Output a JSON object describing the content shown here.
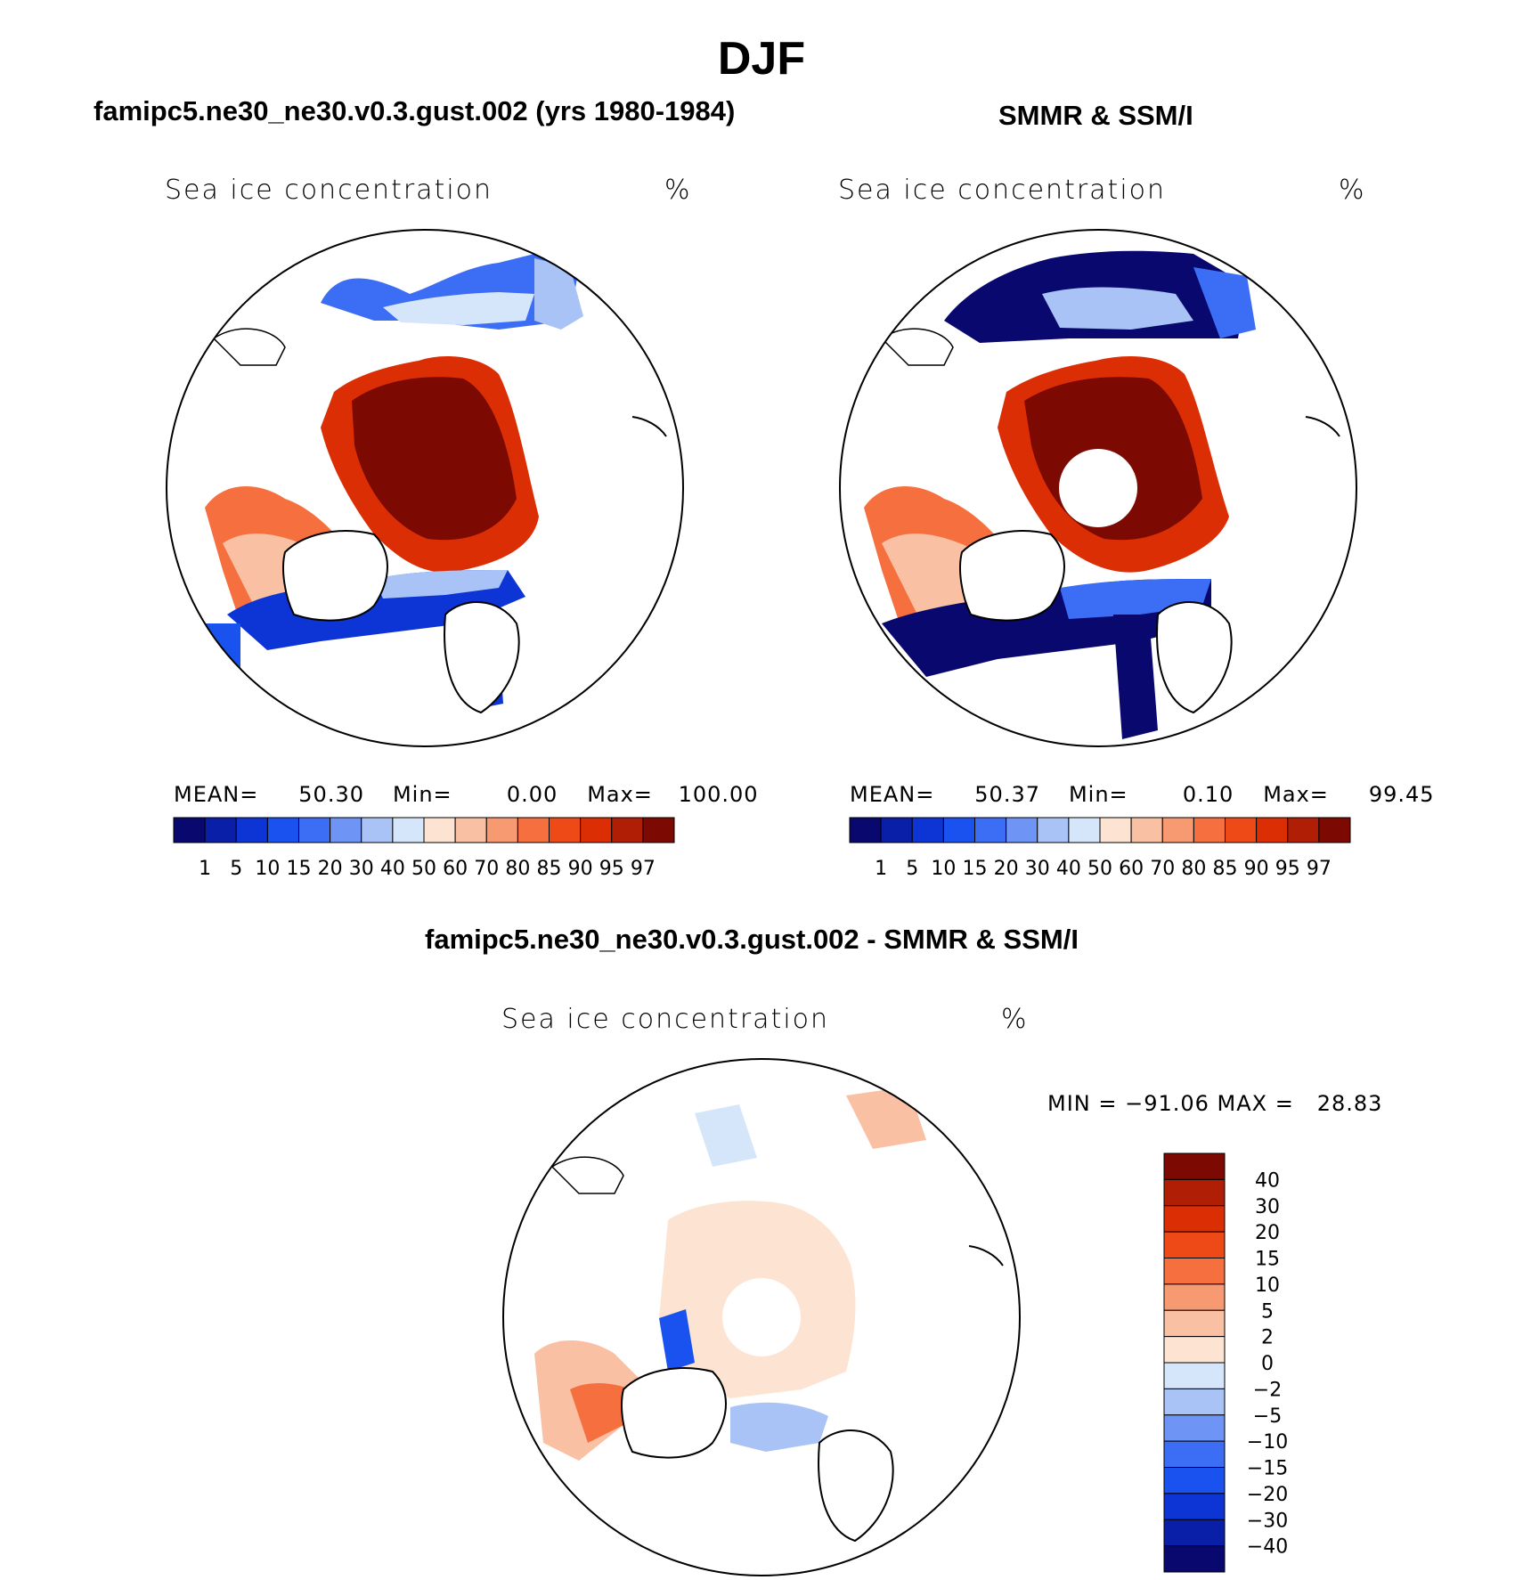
{
  "figure": {
    "title": "DJF",
    "panel_left": {
      "subtitle": "famipc5.ne30_ne30.v0.3.gust.002 (yrs 1980-1984)",
      "variable": "Sea ice concentration",
      "units": "%",
      "stats": {
        "mean_label": "MEAN=",
        "mean": "50.30",
        "min_label": "Min=",
        "min": "0.00",
        "max_label": "Max=",
        "max": "100.00"
      }
    },
    "panel_right": {
      "subtitle": "SMMR & SSM/I",
      "variable": "Sea ice concentration",
      "units": "%",
      "stats": {
        "mean_label": "MEAN=",
        "mean": "50.37",
        "min_label": "Min=",
        "min": "0.10",
        "max_label": "Max=",
        "max": "99.45"
      }
    },
    "panel_diff": {
      "subtitle": "famipc5.ne30_ne30.v0.3.gust.002 - SMMR & SSM/I",
      "variable": "Sea ice concentration",
      "units": "%",
      "minmax": "MIN = −91.06 MAX =   28.83"
    }
  },
  "colorbar_abs": {
    "labels": [
      "1",
      "5",
      "10",
      "15",
      "20",
      "30",
      "40",
      "50",
      "60",
      "70",
      "80",
      "85",
      "90",
      "95",
      "97"
    ],
    "colors": [
      "#08086e",
      "#0a1fa8",
      "#0d35d6",
      "#1a52f0",
      "#3b6ef5",
      "#6e94f5",
      "#a9c3f7",
      "#d6e6fa",
      "#fde3d2",
      "#f9c0a3",
      "#f79a72",
      "#f6703f",
      "#ee4a17",
      "#dc2e05",
      "#b01e05",
      "#7d0a02"
    ]
  },
  "colorbar_diff": {
    "labels": [
      "40",
      "30",
      "20",
      "15",
      "10",
      "5",
      "2",
      "0",
      "−2",
      "−5",
      "−10",
      "−15",
      "−20",
      "−30",
      "−40"
    ],
    "colors": [
      "#7d0a02",
      "#b01e05",
      "#dc2e05",
      "#ee4a17",
      "#f6703f",
      "#f79a72",
      "#f9c0a3",
      "#fde3d2",
      "#d6e6fa",
      "#a9c3f7",
      "#6e94f5",
      "#3b6ef5",
      "#1a52f0",
      "#0d35d6",
      "#0a1fa8",
      "#08086e"
    ]
  }
}
